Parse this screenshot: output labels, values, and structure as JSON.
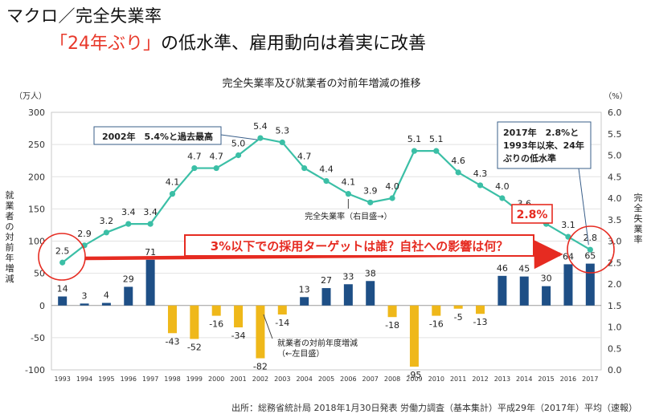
{
  "page": {
    "heading": "マクロ／完全失業率",
    "headline_emph": "「24年ぶり」",
    "headline_rest": "の低水準、雇用動向は着実に改善",
    "source": "出所：総務省統計局 2018年1月30日発表 労働力調査（基本集計）平成29年（2017年）平均（速報）"
  },
  "chart_data": {
    "type": "bar+line",
    "title": "完全失業率及び就業者の対前年増減の推移",
    "left_axis": {
      "unit": "（万人）",
      "label": "就業者の対前年増減",
      "min": -100,
      "max": 300,
      "ticks": [
        300,
        250,
        200,
        150,
        100,
        50,
        0,
        -50,
        -100
      ]
    },
    "right_axis": {
      "unit": "（%）",
      "label": "完全失業率",
      "min": 0.0,
      "max": 6.0,
      "ticks": [
        "6.0",
        "5.5",
        "5.0",
        "4.5",
        "4.0",
        "3.5",
        "3.0",
        "2.5",
        "2.0",
        "1.5",
        "1.0",
        "0.5",
        "0.0"
      ]
    },
    "categories": [
      "1993",
      "1994",
      "1995",
      "1996",
      "1997",
      "1998",
      "1999",
      "2000",
      "2001",
      "2002",
      "2003",
      "2004",
      "2005",
      "2006",
      "2007",
      "2008",
      "2009",
      "2010",
      "2011",
      "2012",
      "2013",
      "2014",
      "2015",
      "2016",
      "2017"
    ],
    "series": [
      {
        "name": "就業者の対前年度増減",
        "axis": "left",
        "type": "bar",
        "values": [
          14,
          3,
          4,
          29,
          71,
          -43,
          -52,
          -16,
          -34,
          -82,
          -14,
          13,
          27,
          33,
          38,
          -18,
          -95,
          -16,
          -5,
          -13,
          46,
          45,
          30,
          64,
          65
        ]
      },
      {
        "name": "完全失業率",
        "axis": "right",
        "type": "line",
        "values": [
          2.5,
          2.9,
          3.2,
          3.4,
          3.4,
          4.1,
          4.7,
          4.7,
          5.0,
          5.4,
          5.3,
          4.7,
          4.4,
          4.1,
          3.9,
          4.0,
          5.1,
          5.1,
          4.6,
          4.3,
          4.0,
          3.6,
          3.4,
          3.1,
          2.8
        ]
      }
    ],
    "bar_labels": [
      "14",
      "3",
      "4",
      "29",
      "71",
      "-43",
      "-52",
      "-16",
      "-34",
      "-82",
      "-14",
      "13",
      "27",
      "33",
      "38",
      "-18",
      "-95",
      "-16",
      "-5",
      "-13",
      "46",
      "45",
      "30",
      "64",
      "65"
    ],
    "line_labels": [
      "2.5",
      "2.9",
      "3.2",
      "3.4",
      "3.4",
      "4.1",
      "4.7",
      "4.7",
      "5.0",
      "5.4",
      "5.3",
      "4.7",
      "4.4",
      "4.1",
      "3.9",
      "4.0",
      "5.1",
      "5.1",
      "4.6",
      "4.3",
      "4.0",
      "3.6",
      "",
      "3.1",
      "2.8"
    ],
    "colors": {
      "positive_bar": "#1e4f86",
      "negative_bar": "#efb81a",
      "line": "#3bbfa6",
      "highlight": "#e62b21"
    },
    "annotations": {
      "peak": "2002年　5.4%と過去最高",
      "latest": [
        "2017年　2.8%と",
        "1993年以来、24年",
        "ぶりの低水準"
      ],
      "line_note": "完全失業率（右目盛→）",
      "bar_note": [
        "就業者の対前年度増減",
        "（←左目盛）"
      ],
      "badge": "2.8%",
      "banner": "3%以下での採用ターゲットは誰？自社への影響は何？"
    }
  }
}
